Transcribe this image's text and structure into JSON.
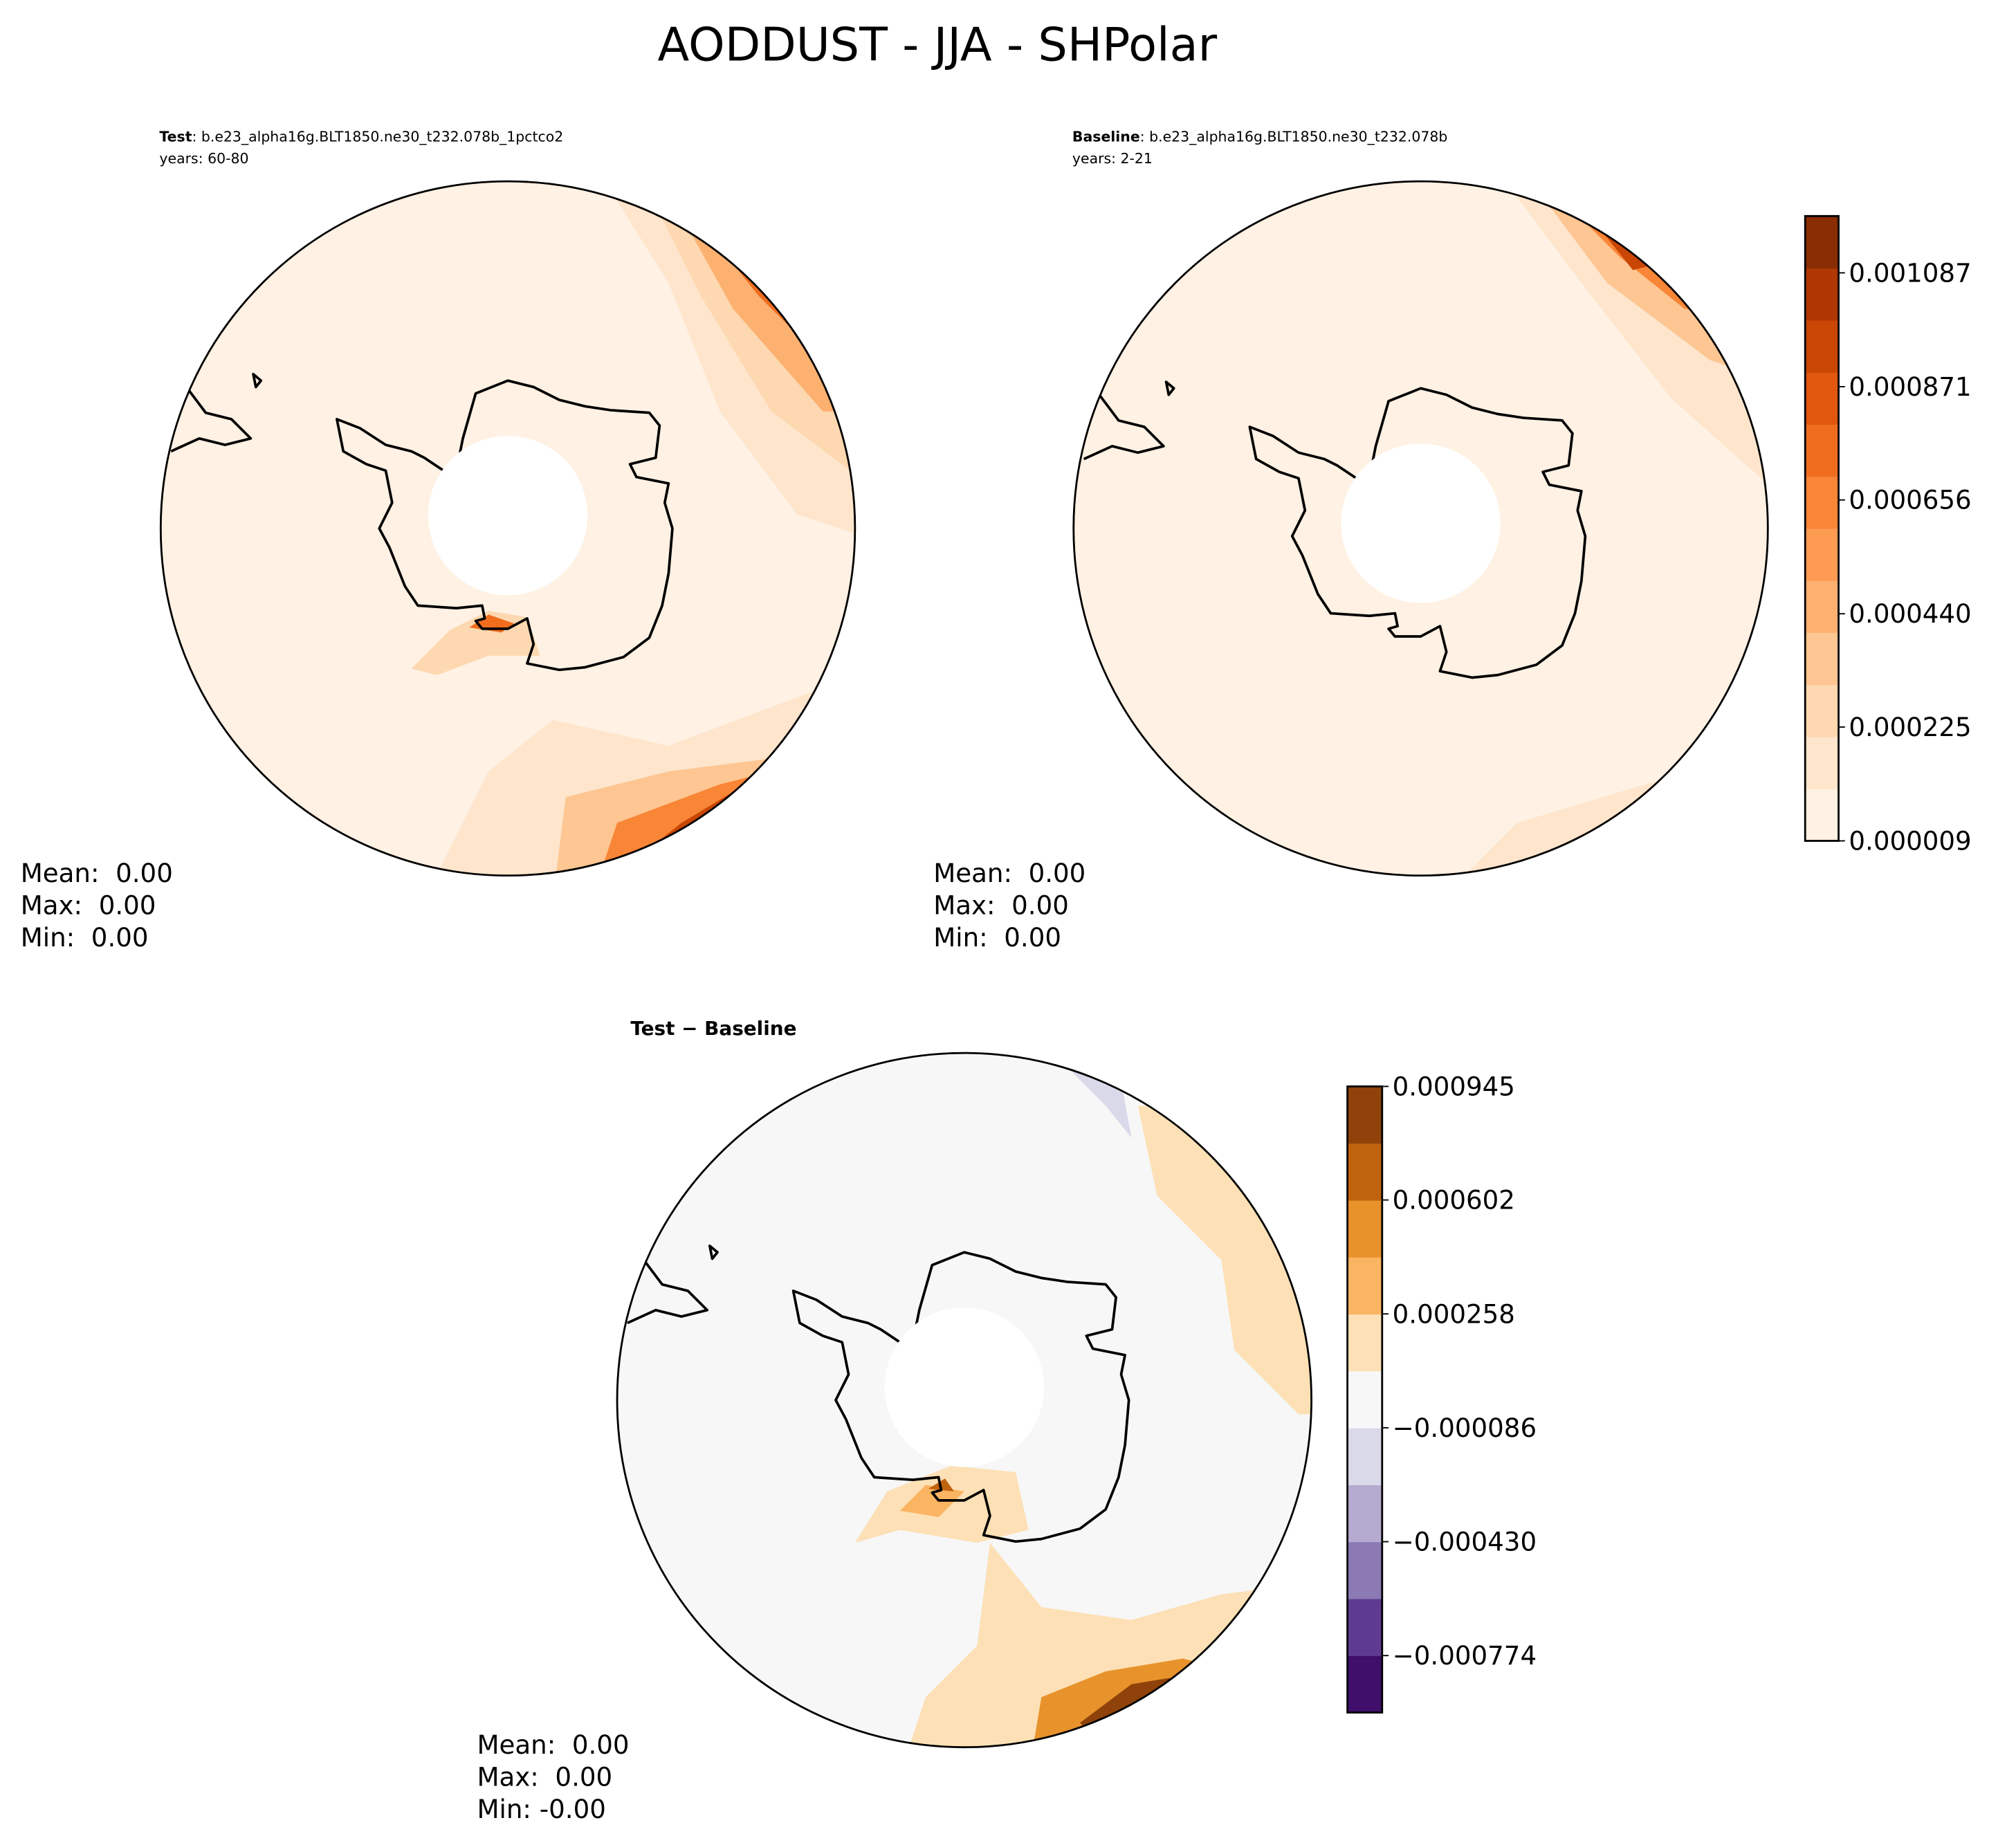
{
  "title": "AODDUST - JJA - SHPolar",
  "panels": [
    {
      "label": "Test",
      "case": ": b.e23_alpha16g.BLT1850.ne30_t232.078b_1pctco2",
      "years": "years: 60-80",
      "stats": [
        "Mean:  0.00",
        "Max:  0.00",
        "Min:  0.00"
      ]
    },
    {
      "label": "Baseline",
      "case": ": b.e23_alpha16g.BLT1850.ne30_t232.078b",
      "years": "years: 2-21",
      "stats": [
        "Mean:  0.00",
        "Max:  0.00",
        "Min:  0.00"
      ]
    },
    {
      "title": "Test − Baseline",
      "stats": [
        "Mean:  0.00",
        "Max:  0.00",
        "Min: -0.00"
      ]
    }
  ],
  "colorbars": [
    {
      "clim": [
        9e-06,
        0.0011948
      ],
      "colors": [
        "#fff1e3",
        "#fee5cc",
        "#fdd8b0",
        "#fdc692",
        "#fdb171",
        "#fd9b52",
        "#f98536",
        "#f06d1e",
        "#e1570d",
        "#c94605",
        "#ae3703",
        "#8a2c04"
      ],
      "ticks": [
        9e-06,
        0.000225,
        {
          "value": 0.00044,
          "label": "0.000440"
        },
        0.000656,
        0.000871,
        0.001087
      ]
    },
    {
      "clim": [
        -0.000946,
        0.000945
      ],
      "colors": [
        "#3f0f6b",
        "#5f3a91",
        "#8b7ab3",
        "#b5aacf",
        "#d9d9ea",
        "#f7f7f7",
        "#fde0b6",
        "#fbb462",
        "#e8922c",
        "#c0630f",
        "#8f430a"
      ],
      "ticks": [
        {
          "value": -0.000774,
          "label": "−0.000774"
        },
        {
          "value": -0.00043,
          "label": "−0.000430"
        },
        {
          "value": -8.6e-05,
          "label": "−0.000086"
        },
        0.000258,
        0.000602,
        0.000945
      ]
    }
  ]
}
